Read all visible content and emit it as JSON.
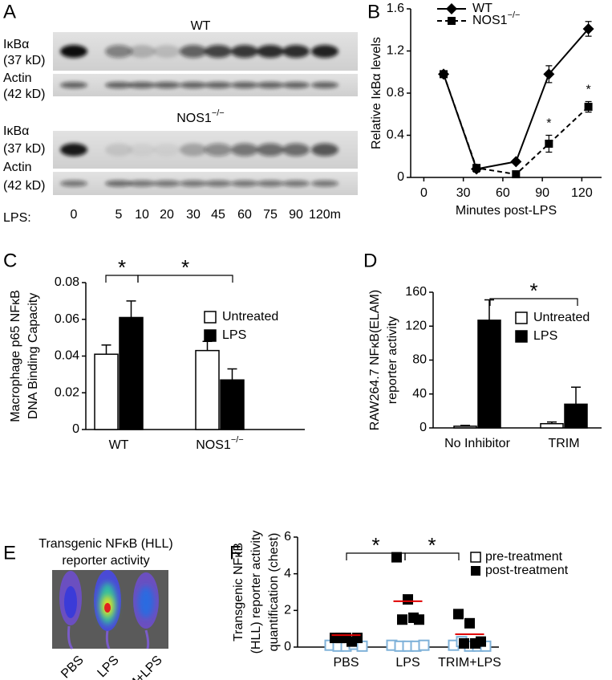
{
  "blots": {
    "panel": "A",
    "groups": [
      {
        "title": "WT",
        "rows": [
          {
            "label": "IκBα",
            "size": "(37 kD)"
          },
          {
            "label": "Actin",
            "size": "(42 kD)"
          }
        ]
      },
      {
        "title": "NOS1−/−",
        "rows": [
          {
            "label": "IκBα",
            "size": "(37 kD)"
          },
          {
            "label": "Actin",
            "size": "(42 kD)"
          }
        ]
      }
    ],
    "lane_label": "LPS:",
    "lanes": [
      "0",
      "5",
      "10",
      "20",
      "30",
      "45",
      "60",
      "75",
      "90",
      "120m"
    ]
  },
  "image_panel": {
    "panel": "E",
    "title": [
      "Transgenic NFκB (HLL)",
      "reporter activity"
    ],
    "labels": [
      "PBS",
      "LPS",
      "TRIM+LPS"
    ]
  },
  "chart_data": [
    {
      "panel": "B",
      "type": "line",
      "xlabel": "Minutes post-LPS",
      "ylabel": "Relative IκBα levels",
      "x": [
        15,
        40,
        70,
        95,
        125
      ],
      "xlim": [
        -10,
        135
      ],
      "xticks": [
        0,
        30,
        60,
        90,
        120
      ],
      "ylim": [
        0,
        1.6
      ],
      "yticks": [
        0,
        0.4,
        0.8,
        1.2,
        1.6
      ],
      "legend": "top",
      "series": [
        {
          "name": "WT",
          "color": "#000000",
          "marker": "diamond",
          "dashed": false,
          "values": [
            0.98,
            0.08,
            0.15,
            0.98,
            1.41
          ],
          "errors": [
            0.03,
            0.03,
            0.02,
            0.08,
            0.07
          ]
        },
        {
          "name": "NOS1−/−",
          "color": "#000000",
          "marker": "square",
          "dashed": true,
          "values": [
            0.98,
            0.09,
            0.03,
            0.32,
            0.67
          ],
          "errors": [
            0.03,
            0.03,
            0.02,
            0.08,
            0.05
          ],
          "annotations": [
            null,
            null,
            null,
            "*",
            "*"
          ]
        }
      ]
    },
    {
      "panel": "C",
      "type": "bar",
      "categories": [
        "WT",
        "NOS1−/−"
      ],
      "ylabel": [
        "Macrophage p65 NFκB",
        "DNA Binding Capacity"
      ],
      "ylim": [
        0,
        0.08
      ],
      "yticks": [
        0,
        0.02,
        0.04,
        0.06,
        0.08
      ],
      "legend": "right",
      "series": [
        {
          "name": "Untreated",
          "color": "#ffffff",
          "values": [
            0.041,
            0.043
          ],
          "errors": [
            0.005,
            0.005
          ]
        },
        {
          "name": "LPS",
          "color": "#000000",
          "values": [
            0.061,
            0.027
          ],
          "errors": [
            0.009,
            0.006
          ]
        }
      ],
      "brackets": [
        "*",
        "*"
      ]
    },
    {
      "panel": "D",
      "type": "bar",
      "categories": [
        "No Inhibitor",
        "TRIM"
      ],
      "ylabel": [
        "RAW264.7 NFκB(ELAM)",
        "reporter activity"
      ],
      "ylim": [
        0,
        160
      ],
      "yticks": [
        0,
        40,
        80,
        120,
        160
      ],
      "legend": "right",
      "series": [
        {
          "name": "Untreated",
          "color": "#ffffff",
          "values": [
            2,
            5
          ],
          "errors": [
            1,
            2
          ]
        },
        {
          "name": "LPS",
          "color": "#000000",
          "values": [
            127,
            28
          ],
          "errors": [
            24,
            20
          ]
        }
      ],
      "brackets": [
        "*"
      ]
    },
    {
      "panel": "F",
      "type": "dot",
      "categories": [
        "PBS",
        "LPS",
        "TRIM+LPS"
      ],
      "ylabel": [
        "Transgenic NFκB",
        "(HLL) reporter activity",
        "quantification (chest)"
      ],
      "ylim": [
        0,
        6
      ],
      "yticks": [
        0,
        2,
        4,
        6
      ],
      "legend": "right",
      "series": [
        {
          "name": "pre-treatment",
          "color": "#7fb2d9",
          "filled": false,
          "values": [
            [
              0.1,
              0.05,
              0.05,
              0.15,
              0.05
            ],
            [
              0.1,
              0.05,
              0.05,
              0.05,
              0.1
            ],
            [
              0.1,
              0.3,
              0.05,
              0.05,
              0.05
            ]
          ]
        },
        {
          "name": "post-treatment",
          "color": "#000000",
          "filled": true,
          "values": [
            [
              0.5,
              0.5,
              0.5,
              0.5,
              0.3
            ],
            [
              4.9,
              2.6,
              1.5,
              1.5,
              1.6
            ],
            [
              1.8,
              1.3,
              0.3,
              0.2,
              0.2
            ]
          ]
        }
      ],
      "means": {
        "color": "#e00000",
        "values": [
          0.65,
          2.5,
          0.7
        ]
      },
      "brackets": [
        "*",
        "*"
      ]
    }
  ]
}
